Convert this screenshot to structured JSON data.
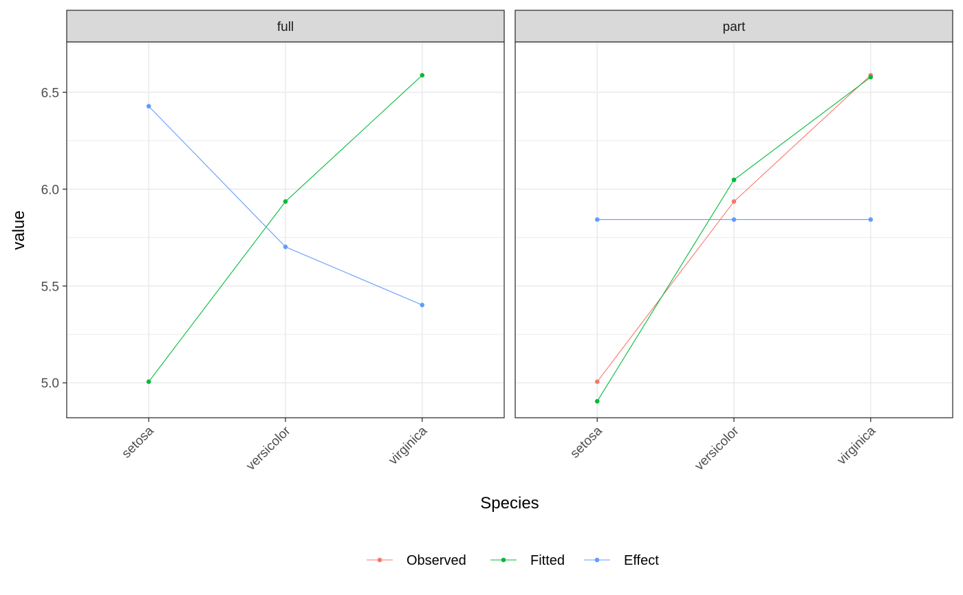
{
  "chart_data": {
    "type": "line",
    "xlabel": "Species",
    "ylabel": "value",
    "categories": [
      "setosa",
      "versicolor",
      "virginica"
    ],
    "ylim": [
      4.82,
      6.76
    ],
    "yticks": [
      "5.0",
      "5.5",
      "6.0",
      "6.5"
    ],
    "grid": true,
    "legend_position": "bottom",
    "legend": [
      "Observed",
      "Fitted",
      "Effect"
    ],
    "colors": {
      "Observed": "#F8766D",
      "Fitted": "#00BA38",
      "Effect": "#619CFF"
    },
    "panels": [
      {
        "name": "full",
        "series": [
          {
            "name": "Fitted",
            "values": [
              5.006,
              5.936,
              6.588
            ]
          },
          {
            "name": "Effect",
            "values": [
              6.428,
              5.702,
              5.402
            ]
          }
        ]
      },
      {
        "name": "part",
        "series": [
          {
            "name": "Observed",
            "values": [
              5.006,
              5.936,
              6.588
            ]
          },
          {
            "name": "Fitted",
            "values": [
              4.905,
              6.048,
              6.578
            ]
          },
          {
            "name": "Effect",
            "values": [
              5.843,
              5.843,
              5.843
            ]
          }
        ]
      }
    ]
  }
}
